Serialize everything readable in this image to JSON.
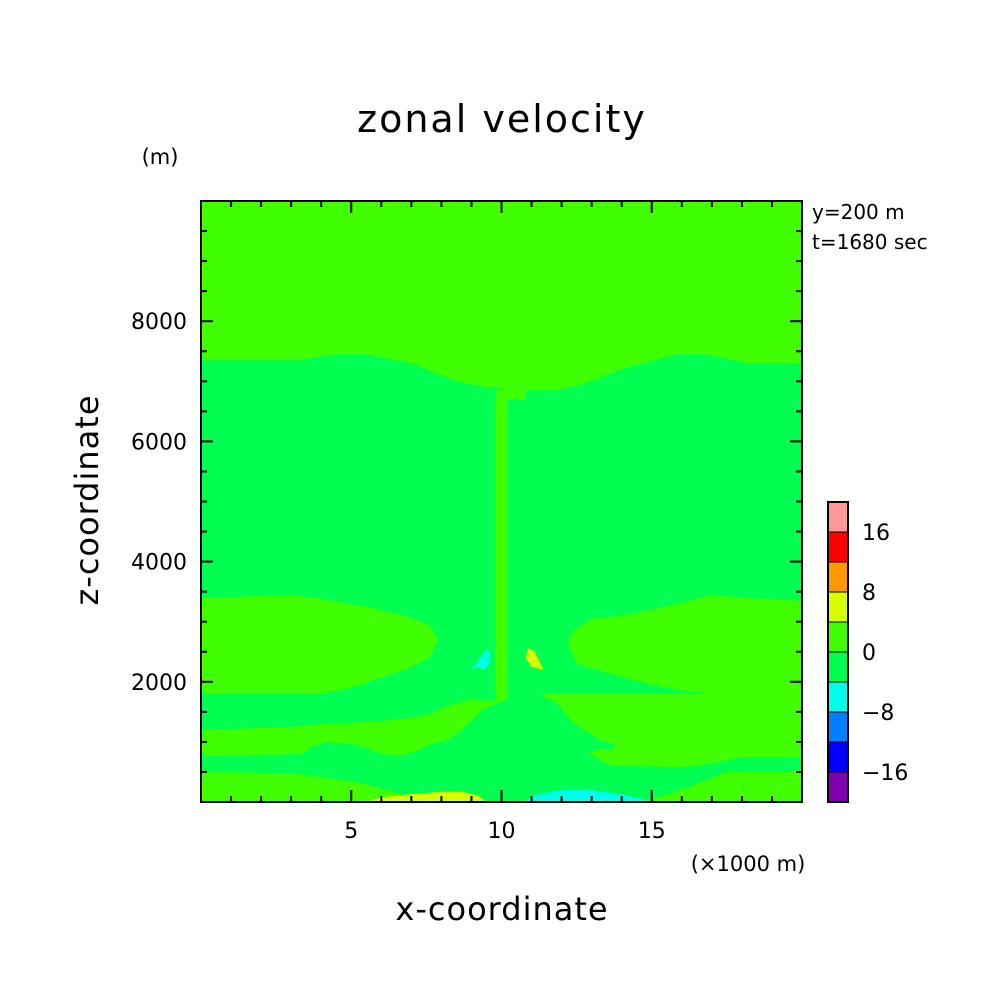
{
  "chart_data": {
    "type": "contour",
    "title": "zonal velocity",
    "xlabel": "x-coordinate",
    "ylabel": "z-coordinate",
    "x_unit": "(×1000 m)",
    "y_unit": "(m)",
    "xlim": [
      0,
      20
    ],
    "ylim": [
      0,
      10000
    ],
    "x_ticks": [
      5,
      10,
      15
    ],
    "y_ticks": [
      2000,
      4000,
      6000,
      8000
    ],
    "x_minor_step": 1,
    "y_minor_step": 500,
    "annotations": [
      "y=200 m",
      "t=1680 sec"
    ],
    "background_color": "#00ff50",
    "colorbar": {
      "levels": [
        -20,
        -16,
        -12,
        -8,
        -4,
        0,
        4,
        8,
        12,
        16,
        20
      ],
      "tick_values": [
        -16,
        -8,
        0,
        8,
        16
      ],
      "colors": [
        "#7f00b0",
        "#0000ff",
        "#0080ff",
        "#00ffe8",
        "#00ff50",
        "#40ff00",
        "#d8ff00",
        "#ff9800",
        "#ff0000",
        "#ff9898"
      ]
    },
    "regions": [
      {
        "level": "0 to 4",
        "color": "#40ff00",
        "path": [
          [
            0,
            10000
          ],
          [
            10.2,
            10000
          ],
          [
            10.2,
            6850
          ],
          [
            9.8,
            6900
          ],
          [
            9.5,
            6900
          ],
          [
            8.5,
            7000
          ],
          [
            7.0,
            7300
          ],
          [
            5.5,
            7450
          ],
          [
            4.5,
            7450
          ],
          [
            3.2,
            7350
          ],
          [
            0,
            7350
          ]
        ]
      },
      {
        "level": "0 to 4",
        "color": "#40ff00",
        "path": [
          [
            0,
            3400
          ],
          [
            1.5,
            3420
          ],
          [
            3.0,
            3450
          ],
          [
            4.0,
            3380
          ],
          [
            5.5,
            3250
          ],
          [
            6.8,
            3100
          ],
          [
            7.6,
            2950
          ],
          [
            7.9,
            2700
          ],
          [
            7.6,
            2400
          ],
          [
            6.8,
            2200
          ],
          [
            5.0,
            1900
          ],
          [
            4.0,
            1800
          ],
          [
            0,
            1800
          ]
        ]
      },
      {
        "level": "0 to 4",
        "color": "#40ff00",
        "path": [
          [
            20,
            7300
          ],
          [
            18.2,
            7300
          ],
          [
            16.8,
            7450
          ],
          [
            15.8,
            7450
          ],
          [
            14.0,
            7200
          ],
          [
            12.7,
            6950
          ],
          [
            11.8,
            6850
          ],
          [
            10.8,
            6850
          ],
          [
            10.8,
            6700
          ],
          [
            10.2,
            6700
          ],
          [
            10.2,
            1700
          ],
          [
            9.4,
            1550
          ],
          [
            8.8,
            1250
          ],
          [
            8.3,
            1050
          ],
          [
            7.6,
            950
          ],
          [
            7.2,
            850
          ],
          [
            6.8,
            790
          ],
          [
            6.5,
            780
          ],
          [
            6.0,
            800
          ],
          [
            5.2,
            950
          ],
          [
            4.2,
            1000
          ],
          [
            3.6,
            900
          ],
          [
            3.4,
            800
          ],
          [
            0,
            760
          ],
          [
            0,
            1200
          ],
          [
            3.0,
            1250
          ],
          [
            4.0,
            1300
          ],
          [
            5.0,
            1320
          ],
          [
            6.0,
            1350
          ],
          [
            7.0,
            1400
          ],
          [
            7.5,
            1450
          ],
          [
            8.0,
            1550
          ],
          [
            8.2,
            1600
          ],
          [
            9.0,
            1700
          ],
          [
            9.8,
            1680
          ],
          [
            9.8,
            6850
          ],
          [
            10.2,
            6850
          ],
          [
            10.2,
            10000
          ],
          [
            20,
            10000
          ]
        ]
      },
      {
        "level": "0 to 4",
        "color": "#40ff00",
        "path": [
          [
            20,
            3350
          ],
          [
            18.0,
            3400
          ],
          [
            17.0,
            3450
          ],
          [
            16.5,
            3380
          ],
          [
            15.0,
            3200
          ],
          [
            14.0,
            3100
          ],
          [
            13.0,
            3050
          ],
          [
            12.4,
            2850
          ],
          [
            12.2,
            2650
          ],
          [
            12.5,
            2300
          ],
          [
            13.5,
            2150
          ],
          [
            15.0,
            1950
          ],
          [
            16.0,
            1850
          ],
          [
            17.0,
            1800
          ],
          [
            20,
            1800
          ]
        ]
      },
      {
        "level": "0 to 4",
        "color": "#40ff00",
        "path": [
          [
            20,
            750
          ],
          [
            18.0,
            750
          ],
          [
            17.0,
            640
          ],
          [
            16.0,
            580
          ],
          [
            13.7,
            600
          ],
          [
            13.4,
            660
          ],
          [
            13.1,
            760
          ],
          [
            12.9,
            830
          ],
          [
            13.3,
            880
          ],
          [
            13.7,
            870
          ],
          [
            13.8,
            950
          ],
          [
            13.3,
            1030
          ],
          [
            12.8,
            1180
          ],
          [
            12.4,
            1320
          ],
          [
            12.1,
            1480
          ],
          [
            12.0,
            1560
          ],
          [
            11.8,
            1650
          ],
          [
            11.6,
            1700
          ],
          [
            11.4,
            1760
          ],
          [
            11.3,
            1800
          ],
          [
            20,
            1800
          ]
        ]
      },
      {
        "level": "0 to 4",
        "color": "#40ff00",
        "path": [
          [
            0,
            0
          ],
          [
            0,
            500
          ],
          [
            3.0,
            480
          ],
          [
            4.5,
            380
          ],
          [
            5.5,
            300
          ],
          [
            6.5,
            150
          ],
          [
            7.5,
            60
          ],
          [
            8.5,
            40
          ],
          [
            9.2,
            40
          ],
          [
            9.7,
            0
          ]
        ]
      },
      {
        "level": "0 to 4",
        "color": "#40ff00",
        "path": [
          [
            20,
            0
          ],
          [
            20,
            520
          ],
          [
            17.5,
            500
          ],
          [
            16.5,
            300
          ],
          [
            15.7,
            160
          ],
          [
            15.0,
            50
          ],
          [
            14.5,
            0
          ]
        ]
      },
      {
        "level": "4 to 8",
        "color": "#d8ff00",
        "path": [
          [
            5.5,
            0
          ],
          [
            6.0,
            80
          ],
          [
            7.0,
            130
          ],
          [
            8.0,
            170
          ],
          [
            8.7,
            170
          ],
          [
            9.2,
            110
          ],
          [
            9.5,
            0
          ]
        ]
      },
      {
        "level": "4 to 8",
        "color": "#d8ff00",
        "path": [
          [
            10.8,
            2400
          ],
          [
            10.9,
            2560
          ],
          [
            11.1,
            2500
          ],
          [
            11.3,
            2300
          ],
          [
            11.4,
            2200
          ],
          [
            11.0,
            2250
          ]
        ]
      },
      {
        "level": "-4 to 0",
        "color": "#00ffe8",
        "path": [
          [
            10.7,
            0
          ],
          [
            11.2,
            130
          ],
          [
            12.0,
            200
          ],
          [
            13.0,
            200
          ],
          [
            14.0,
            130
          ],
          [
            14.7,
            50
          ],
          [
            15.0,
            0
          ]
        ]
      },
      {
        "level": "-4 to 0",
        "color": "#00ffe8",
        "path": [
          [
            9.4,
            2200
          ],
          [
            9.2,
            2250
          ],
          [
            9.0,
            2200
          ],
          [
            9.3,
            2400
          ],
          [
            9.5,
            2550
          ],
          [
            9.6,
            2500
          ],
          [
            9.6,
            2300
          ]
        ]
      }
    ]
  }
}
